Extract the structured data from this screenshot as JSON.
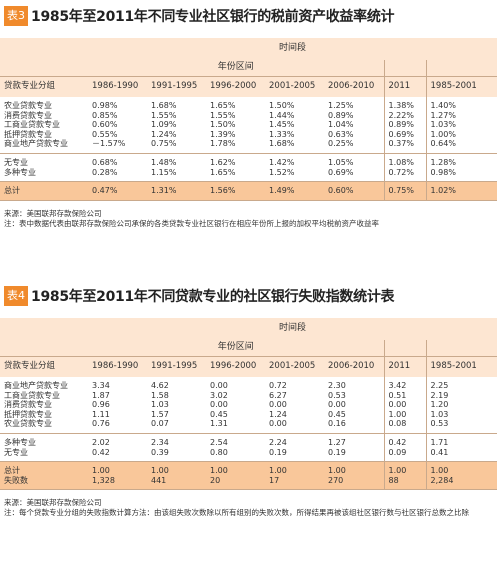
{
  "sections": [
    {
      "badge": "表3",
      "title": "1985年至2011年不同专业社区银行的税前资产收益率统计",
      "header": {
        "period": "时间段",
        "range": "年份区间",
        "group": "贷款专业分组",
        "columns": [
          "1986-1990",
          "1991-1995",
          "1996-2000",
          "2001-2005",
          "2006-2010",
          "2011",
          "1985-2001"
        ]
      },
      "groups": [
        [
          [
            "农业贷款专业",
            "0.98%",
            "1.68%",
            "1.65%",
            "1.50%",
            "1.25%",
            "1.38%",
            "1.40%"
          ],
          [
            "消费贷款专业",
            "0.85%",
            "1.55%",
            "1.55%",
            "1.44%",
            "0.89%",
            "2.22%",
            "1.27%"
          ],
          [
            "工商业贷款专业",
            "0.60%",
            "1.09%",
            "1.50%",
            "1.45%",
            "1.04%",
            "0.89%",
            "1.03%"
          ],
          [
            "抵押贷款专业",
            "0.55%",
            "1.24%",
            "1.39%",
            "1.33%",
            "0.63%",
            "0.69%",
            "1.00%"
          ],
          [
            "商业地产贷款专业",
            "－1.57%",
            "0.75%",
            "1.78%",
            "1.68%",
            "0.25%",
            "0.37%",
            "0.64%"
          ]
        ],
        [
          [
            "无专业",
            "0.68%",
            "1.48%",
            "1.62%",
            "1.42%",
            "1.05%",
            "1.08%",
            "1.28%"
          ],
          [
            "多种专业",
            "0.28%",
            "1.15%",
            "1.65%",
            "1.52%",
            "0.69%",
            "0.72%",
            "0.98%"
          ]
        ]
      ],
      "total": [
        [
          "总计",
          "0.47%",
          "1.31%",
          "1.56%",
          "1.49%",
          "0.60%",
          "0.75%",
          "1.02%"
        ]
      ],
      "notes": [
        "来源：美国联邦存款保险公司",
        "注：表中数据代表由联邦存款保险公司承保的各类贷款专业社区银行在相应年份所上报的加权平均税前资产收益率"
      ]
    },
    {
      "badge": "表4",
      "title": "1985年至2011年不同贷款专业的社区银行失败指数统计表",
      "header": {
        "period": "时间段",
        "range": "年份区间",
        "group": "贷款专业分组",
        "columns": [
          "1986-1990",
          "1991-1995",
          "1996-2000",
          "2001-2005",
          "2006-2010",
          "2011",
          "1985-2001"
        ]
      },
      "groups": [
        [
          [
            "商业地产贷款专业",
            "3.34",
            "4.62",
            "0.00",
            "0.72",
            "2.30",
            "3.42",
            "2.25"
          ],
          [
            "工商业贷款专业",
            "1.87",
            "1.58",
            "3.02",
            "6.27",
            "0.53",
            "0.51",
            "2.19"
          ],
          [
            "消费贷款专业",
            "0.96",
            "1.03",
            "0.00",
            "0.00",
            "0.00",
            "0.00",
            "1.20"
          ],
          [
            "抵押贷款专业",
            "1.11",
            "1.57",
            "0.45",
            "1.24",
            "0.45",
            "1.00",
            "1.03"
          ],
          [
            "农业贷款专业",
            "0.76",
            "0.07",
            "1.31",
            "0.00",
            "0.16",
            "0.08",
            "0.53"
          ]
        ],
        [
          [
            "多种专业",
            "2.02",
            "2.34",
            "2.54",
            "2.24",
            "1.27",
            "0.42",
            "1.71"
          ],
          [
            "无专业",
            "0.42",
            "0.39",
            "0.80",
            "0.19",
            "0.19",
            "0.09",
            "0.41"
          ]
        ]
      ],
      "total": [
        [
          "总计",
          "1.00",
          "1.00",
          "1.00",
          "1.00",
          "1.00",
          "1.00",
          "1.00"
        ],
        [
          "失败数",
          "1,328",
          "441",
          "20",
          "17",
          "270",
          "88",
          "2,284"
        ]
      ],
      "notes": [
        "来源：美国联邦存款保险公司",
        "注：每个贷款专业分组的失败指数计算方法：由该组失败次数除以所有组别的失败次数，所得结果再被该组社区银行数与社区银行总数之比除"
      ]
    }
  ]
}
